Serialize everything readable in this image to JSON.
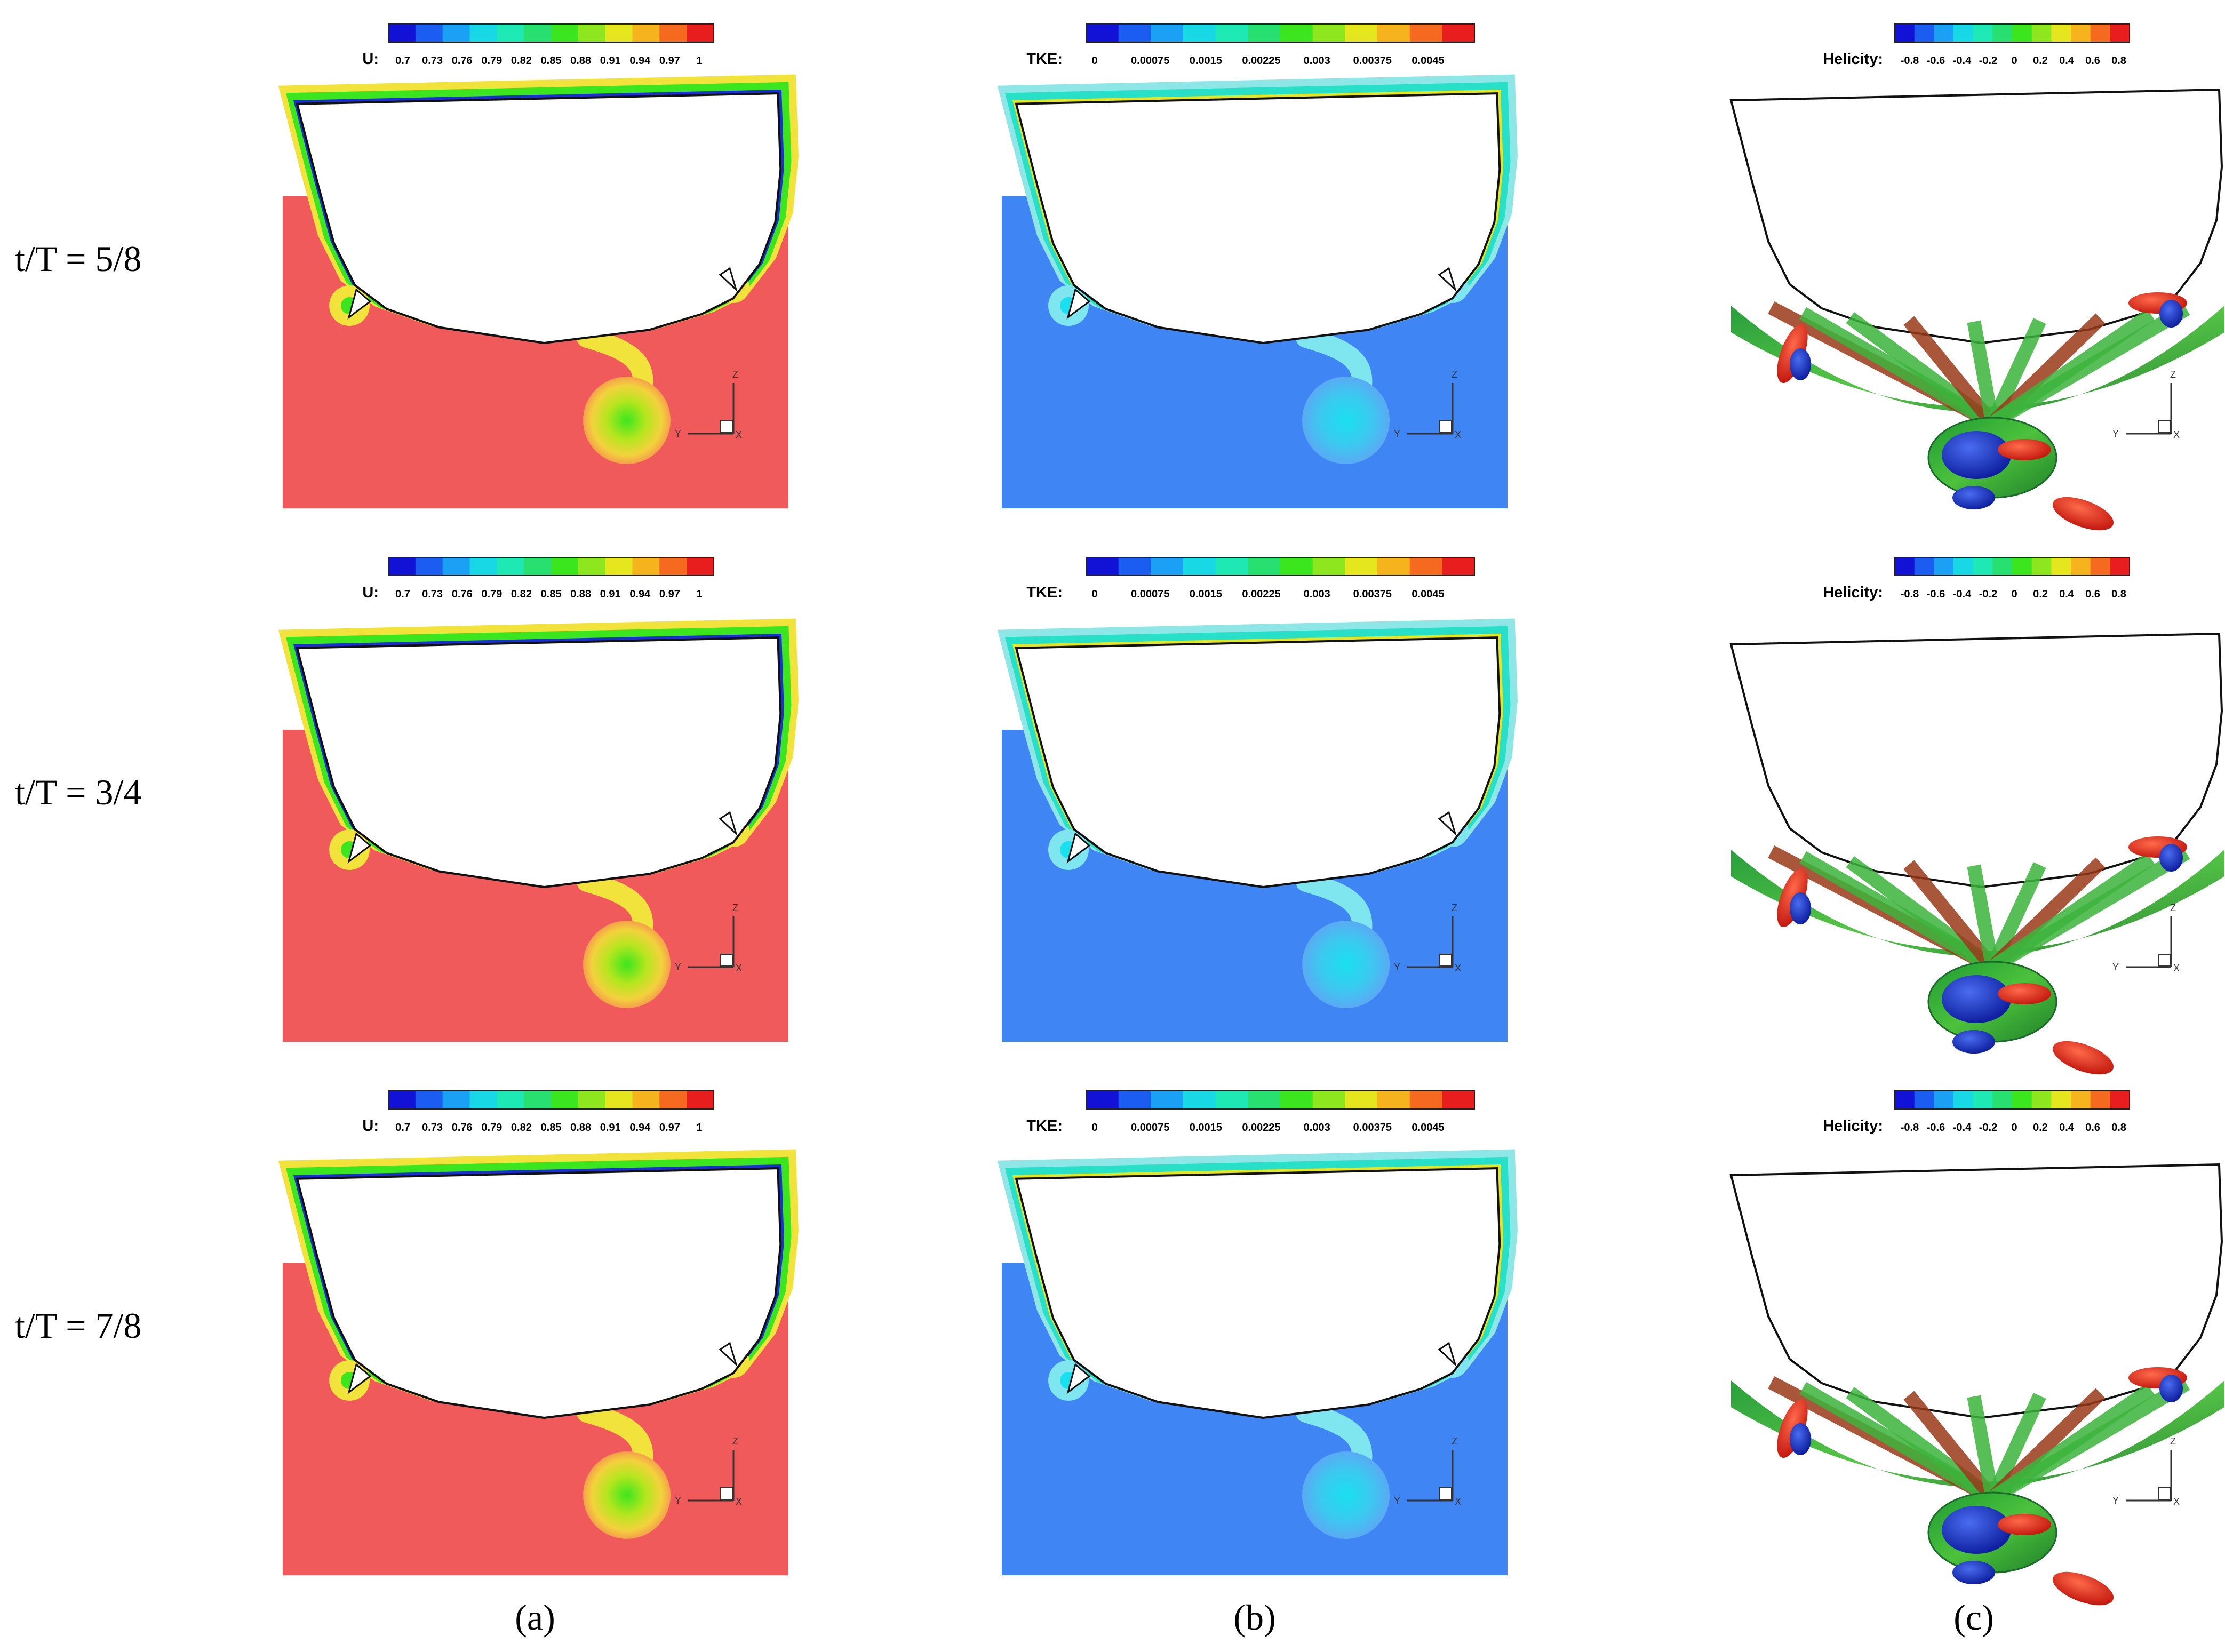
{
  "row_labels": [
    "t/T = 5/8",
    "t/T = 3/4",
    "t/T = 7/8"
  ],
  "column_captions": [
    "(a)",
    "(b)",
    "(c)"
  ],
  "columns": [
    {
      "colorbar_title": "U:",
      "tick_labels": [
        "0.7",
        "0.73",
        "0.76",
        "0.79",
        "0.82",
        "0.85",
        "0.88",
        "0.91",
        "0.94",
        "0.97",
        "1"
      ],
      "background_color": "#f15a5a"
    },
    {
      "colorbar_title": "TKE:",
      "tick_labels": [
        "0",
        "0.00075",
        "0.0015",
        "0.00225",
        "0.003",
        "0.00375",
        "0.0045"
      ],
      "background_color": "#3f86f4"
    },
    {
      "colorbar_title": "Helicity:",
      "tick_labels": [
        "-0.8",
        "-0.6",
        "-0.4",
        "-0.2",
        "0",
        "0.2",
        "0.4",
        "0.6",
        "0.8"
      ],
      "background_color": "#ffffff"
    }
  ],
  "axis_triad": {
    "z": "Z",
    "y": "Y",
    "x": "X"
  },
  "colormap": [
    "#1212d6",
    "#1a5df0",
    "#1aa0f5",
    "#18d8e6",
    "#1ee8b4",
    "#28e070",
    "#3ce61e",
    "#8ee61e",
    "#e6e61e",
    "#f5b41e",
    "#f56a1e",
    "#e81e1e"
  ]
}
